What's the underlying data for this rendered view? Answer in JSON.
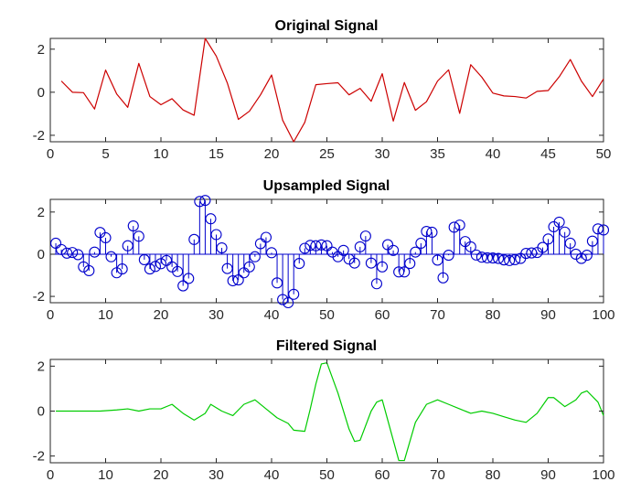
{
  "figure": {
    "background": "#ffffff"
  },
  "chart_data": [
    {
      "type": "line",
      "title": "Original Signal",
      "xlabel": "",
      "ylabel": "",
      "xlim": [
        0,
        50
      ],
      "ylim": [
        -2.3,
        2.5
      ],
      "xticks": [
        0,
        5,
        10,
        15,
        20,
        25,
        30,
        35,
        40,
        45,
        50
      ],
      "yticks": [
        -2,
        0,
        2
      ],
      "grid": false,
      "color": "#cc0000",
      "x": [
        1,
        2,
        3,
        4,
        5,
        6,
        7,
        8,
        9,
        10,
        11,
        12,
        13,
        14,
        15,
        16,
        17,
        18,
        19,
        20,
        21,
        22,
        23,
        24,
        25,
        26,
        27,
        28,
        29,
        30,
        31,
        32,
        33,
        34,
        35,
        36,
        37,
        38,
        39,
        40,
        41,
        42,
        43,
        44,
        45,
        46,
        47,
        48,
        49,
        50
      ],
      "values": [
        0.52,
        0.0,
        -0.02,
        -0.78,
        1.03,
        -0.08,
        -0.7,
        1.34,
        -0.2,
        -0.58,
        -0.3,
        -0.82,
        -1.07,
        2.5,
        1.68,
        0.43,
        -1.26,
        -0.88,
        -0.12,
        0.8,
        -1.3,
        -2.3,
        -1.4,
        0.35,
        0.4,
        0.44,
        -0.12,
        0.18,
        -0.42,
        0.86,
        -1.34,
        0.45,
        -0.84,
        -0.44,
        0.52,
        1.04,
        -0.98,
        1.28,
        0.7,
        -0.04,
        -0.17,
        -0.2,
        -0.27,
        0.04,
        0.08,
        0.72,
        1.52,
        0.52,
        -0.2,
        0.62
      ]
    },
    {
      "type": "stem",
      "title": "Upsampled Signal",
      "xlabel": "",
      "ylabel": "",
      "xlim": [
        0,
        100
      ],
      "ylim": [
        -2.3,
        2.6
      ],
      "xticks": [
        0,
        10,
        20,
        30,
        40,
        50,
        60,
        70,
        80,
        90,
        100
      ],
      "yticks": [
        -2,
        0,
        2
      ],
      "grid": false,
      "color": "#0000cc",
      "x": [
        1,
        2,
        3,
        4,
        5,
        6,
        7,
        8,
        9,
        10,
        11,
        12,
        13,
        14,
        15,
        16,
        17,
        18,
        19,
        20,
        21,
        22,
        23,
        24,
        25,
        26,
        27,
        28,
        29,
        30,
        31,
        32,
        33,
        34,
        35,
        36,
        37,
        38,
        39,
        40,
        41,
        42,
        43,
        44,
        45,
        46,
        47,
        48,
        49,
        50,
        51,
        52,
        53,
        54,
        55,
        56,
        57,
        58,
        59,
        60,
        61,
        62,
        63,
        64,
        65,
        66,
        67,
        68,
        69,
        70,
        71,
        72,
        73,
        74,
        75,
        76,
        77,
        78,
        79,
        80,
        81,
        82,
        83,
        84,
        85,
        86,
        87,
        88,
        89,
        90,
        91,
        92,
        93,
        94,
        95,
        96,
        97,
        98,
        99,
        100
      ],
      "values": [
        0.52,
        0.22,
        0.05,
        0.08,
        -0.02,
        -0.6,
        -0.78,
        0.1,
        1.03,
        0.78,
        -0.12,
        -0.88,
        -0.7,
        0.4,
        1.34,
        0.85,
        -0.26,
        -0.7,
        -0.58,
        -0.45,
        -0.3,
        -0.6,
        -0.82,
        -1.5,
        -1.15,
        0.7,
        2.5,
        2.55,
        1.68,
        0.93,
        0.3,
        -0.68,
        -1.26,
        -1.22,
        -0.88,
        -0.6,
        -0.12,
        0.5,
        0.8,
        0.07,
        -1.36,
        -2.15,
        -2.3,
        -1.9,
        -0.44,
        0.28,
        0.42,
        0.4,
        0.44,
        0.4,
        0.1,
        -0.12,
        0.18,
        -0.23,
        -0.42,
        0.35,
        0.86,
        -0.42,
        -1.4,
        -0.6,
        0.45,
        0.18,
        -0.84,
        -0.84,
        -0.44,
        0.1,
        0.52,
        1.08,
        1.04,
        -0.28,
        -1.12,
        -0.05,
        1.28,
        1.38,
        0.6,
        0.35,
        -0.04,
        -0.14,
        -0.17,
        -0.18,
        -0.2,
        -0.27,
        -0.3,
        -0.26,
        -0.2,
        0.04,
        0.06,
        0.08,
        0.32,
        0.72,
        1.3,
        1.52,
        1.05,
        0.52,
        0.0,
        -0.2,
        -0.05,
        0.62,
        1.2,
        1.15
      ]
    },
    {
      "type": "line",
      "title": "Filtered Signal",
      "xlabel": "",
      "ylabel": "",
      "xlim": [
        0,
        100
      ],
      "ylim": [
        -2.3,
        2.3
      ],
      "xticks": [
        0,
        10,
        20,
        30,
        40,
        50,
        60,
        70,
        80,
        90,
        100
      ],
      "yticks": [
        -2,
        0,
        2
      ],
      "grid": false,
      "color": "#00cc00",
      "x": [
        1,
        3,
        6,
        9,
        12,
        14,
        16,
        18,
        20,
        22,
        24,
        26,
        28,
        29,
        31,
        33,
        35,
        37,
        39,
        41,
        43,
        44,
        46,
        47,
        48,
        49,
        50,
        52,
        54,
        55,
        56,
        58,
        59,
        60,
        62,
        63,
        64,
        66,
        68,
        70,
        72,
        74,
        76,
        78,
        80,
        82,
        84,
        86,
        88,
        90,
        91,
        93,
        95,
        96,
        97,
        99,
        100
      ],
      "values": [
        0.0,
        0.0,
        0.0,
        0.0,
        0.05,
        0.1,
        0.0,
        0.1,
        0.1,
        0.3,
        -0.1,
        -0.4,
        -0.1,
        0.3,
        0.0,
        -0.2,
        0.3,
        0.5,
        0.1,
        -0.3,
        -0.55,
        -0.85,
        -0.9,
        0.1,
        1.2,
        2.1,
        2.15,
        0.8,
        -0.8,
        -1.35,
        -1.3,
        0.0,
        0.4,
        0.5,
        -1.3,
        -2.2,
        -2.2,
        -0.5,
        0.3,
        0.5,
        0.3,
        0.1,
        -0.1,
        0.0,
        -0.1,
        -0.25,
        -0.4,
        -0.5,
        -0.1,
        0.6,
        0.6,
        0.2,
        0.5,
        0.8,
        0.9,
        0.4,
        -0.2
      ]
    }
  ]
}
